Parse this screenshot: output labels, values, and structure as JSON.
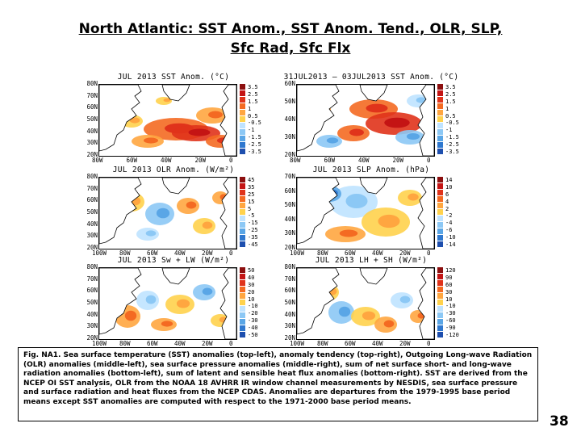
{
  "page": {
    "title_line1": "North Atlantic: SST Anom., SST Anom. Tend., OLR, SLP,",
    "title_line2": "Sfc Rad, Sfc Flx",
    "page_number": "38"
  },
  "colors": {
    "positive": [
      "#ffd24d",
      "#ffa640",
      "#f46a22",
      "#e0331b",
      "#c41414",
      "#8c0f0f"
    ],
    "negative": [
      "#bfe3ff",
      "#8cc8f5",
      "#5aa6e6",
      "#2f78cf",
      "#1e4fae"
    ],
    "land": "#ffffff",
    "coast": "#000000"
  },
  "panels": [
    {
      "title": "JUL 2013 SST Anom. (°C)",
      "y_ticks": [
        "80N",
        "70N",
        "60N",
        "50N",
        "40N",
        "30N",
        "20N"
      ],
      "x_ticks": [
        "80W",
        "60W",
        "40W",
        "20W",
        "0"
      ],
      "colorbar": [
        "3.5",
        "2.5",
        "1.5",
        "1",
        "0.5",
        "-0.5",
        "-1",
        "-1.5",
        "-2.5",
        "-3.5"
      ]
    },
    {
      "title": "31JUL2013 — 03JUL2013 SST Anom. (°C)",
      "y_ticks": [
        "60N",
        "50N",
        "40N",
        "30N",
        "20N"
      ],
      "x_ticks": [
        "80W",
        "60W",
        "40W",
        "20W",
        "0"
      ],
      "colorbar": [
        "3.5",
        "2.5",
        "1.5",
        "1",
        "0.5",
        "-0.5",
        "-1",
        "-1.5",
        "-2.5",
        "-3.5"
      ]
    },
    {
      "title": "JUL 2013 OLR Anom. (W/m²)",
      "y_ticks": [
        "80N",
        "70N",
        "60N",
        "50N",
        "40N",
        "30N",
        "20N"
      ],
      "x_ticks": [
        "100W",
        "80W",
        "60W",
        "40W",
        "20W",
        "0"
      ],
      "colorbar": [
        "45",
        "35",
        "25",
        "15",
        "5",
        "-5",
        "-15",
        "-25",
        "-35",
        "-45"
      ]
    },
    {
      "title": "JUL 2013 SLP Anom. (hPa)",
      "y_ticks": [
        "70N",
        "60N",
        "50N",
        "40N",
        "30N",
        "20N"
      ],
      "x_ticks": [
        "100W",
        "80W",
        "60W",
        "40W",
        "20W",
        "0"
      ],
      "colorbar": [
        "14",
        "10",
        "6",
        "4",
        "2",
        "-2",
        "-4",
        "-6",
        "-10",
        "-14"
      ]
    },
    {
      "title": "JUL 2013 Sw + LW (W/m²)",
      "y_ticks": [
        "80N",
        "70N",
        "60N",
        "50N",
        "40N",
        "30N",
        "20N"
      ],
      "x_ticks": [
        "100W",
        "80W",
        "60W",
        "40W",
        "20W",
        "0"
      ],
      "colorbar": [
        "50",
        "40",
        "30",
        "20",
        "10",
        "-10",
        "-20",
        "-30",
        "-40",
        "-50"
      ]
    },
    {
      "title": "JUL 2013 LH + SH (W/m²)",
      "y_ticks": [
        "80N",
        "70N",
        "60N",
        "50N",
        "40N",
        "30N",
        "20N"
      ],
      "x_ticks": [
        "100W",
        "80W",
        "60W",
        "40W",
        "20W",
        "0"
      ],
      "colorbar": [
        "120",
        "90",
        "60",
        "30",
        "10",
        "-10",
        "-30",
        "-60",
        "-90",
        "-120"
      ]
    }
  ],
  "caption": {
    "text": "Fig. NA1. Sea surface temperature (SST) anomalies (top-left), anomaly tendency (top-right), Outgoing Long-wave Radiation (OLR) anomalies (middle-left), sea surface pressure anomalies (middle-right), sum of net surface short- and long-wave radiation anomalies (bottom-left), sum of latent and sensible heat flux anomalies (bottom-right). SST are derived from the NCEP OI SST analysis, OLR from the NOAA 18 AVHRR IR window channel measurements by NESDIS, sea surface pressure and surface radiation and heat fluxes from the NCEP CDAS. Anomalies are departures from the 1979-1995 base period means except SST anomalies are computed with respect to the 1971-2000 base period means."
  }
}
